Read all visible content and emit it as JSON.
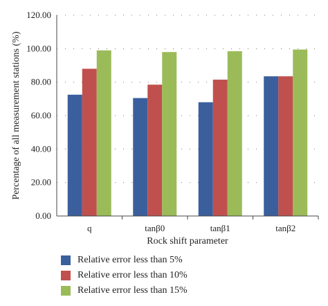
{
  "chart_data": {
    "type": "bar",
    "xlabel": "Rock shift parameter",
    "ylabel": "Percentage of all measurement stations (%)",
    "ylim": [
      0,
      120
    ],
    "yticks": [
      "0.00",
      "20.00",
      "40.00",
      "60.00",
      "80.00",
      "100.00",
      "120.00"
    ],
    "categories": [
      "q",
      "tanβ0",
      "tanβ1",
      "tanβ2"
    ],
    "grid": "horizontal dotted",
    "legend_position": "bottom",
    "series": [
      {
        "name": "Relative error less than 5%",
        "color": "#3b5f9c",
        "values": [
          72.5,
          70.5,
          68.0,
          83.5
        ]
      },
      {
        "name": "Relative error less than 10%",
        "color": "#c0504d",
        "values": [
          88.0,
          78.5,
          81.5,
          83.5
        ]
      },
      {
        "name": "Relative error less than 15%",
        "color": "#9bbb59",
        "values": [
          99.0,
          98.0,
          98.5,
          99.5
        ]
      }
    ]
  }
}
